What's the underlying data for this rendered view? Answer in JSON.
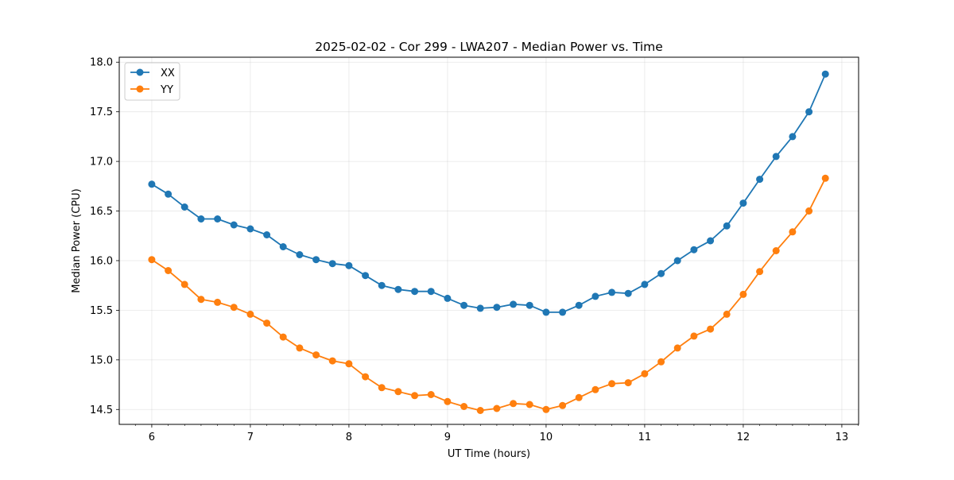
{
  "chart_data": {
    "type": "line",
    "title": "2025-02-02 - Cor 299 - LWA207 - Median Power vs. Time",
    "xlabel": "UT Time (hours)",
    "ylabel": "Median Power (CPU)",
    "xlim": [
      5.67,
      13.17
    ],
    "ylim": [
      14.35,
      18.05
    ],
    "xticks": [
      6,
      7,
      8,
      9,
      10,
      11,
      12,
      13
    ],
    "xtick_labels": [
      "6",
      "7",
      "8",
      "9",
      "10",
      "11",
      "12",
      "13"
    ],
    "yticks": [
      14.5,
      15.0,
      15.5,
      16.0,
      16.5,
      17.0,
      17.5,
      18.0
    ],
    "ytick_labels": [
      "14.5",
      "15.0",
      "15.5",
      "16.0",
      "16.5",
      "17.0",
      "17.5",
      "18.0"
    ],
    "grid": true,
    "legend_position": "top-left",
    "x": [
      6.0,
      6.1667,
      6.3333,
      6.5,
      6.6667,
      6.8333,
      7.0,
      7.1667,
      7.3333,
      7.5,
      7.6667,
      7.8333,
      8.0,
      8.1667,
      8.3333,
      8.5,
      8.6667,
      8.8333,
      9.0,
      9.1667,
      9.3333,
      9.5,
      9.6667,
      9.8333,
      10.0,
      10.1667,
      10.3333,
      10.5,
      10.6667,
      10.8333,
      11.0,
      11.1667,
      11.3333,
      11.5,
      11.6667,
      11.8333,
      12.0,
      12.1667,
      12.3333,
      12.5,
      12.6667,
      12.8333
    ],
    "series": [
      {
        "name": "XX",
        "color": "#1f77b4",
        "values": [
          16.77,
          16.67,
          16.54,
          16.42,
          16.42,
          16.36,
          16.32,
          16.26,
          16.14,
          16.06,
          16.01,
          15.97,
          15.95,
          15.85,
          15.75,
          15.71,
          15.69,
          15.69,
          15.62,
          15.55,
          15.52,
          15.53,
          15.56,
          15.55,
          15.48,
          15.48,
          15.55,
          15.64,
          15.68,
          15.67,
          15.76,
          15.87,
          16.0,
          16.11,
          16.2,
          16.35,
          16.58,
          16.82,
          17.05,
          17.25,
          17.5,
          17.88
        ]
      },
      {
        "name": "YY",
        "color": "#ff7f0e",
        "values": [
          16.01,
          15.9,
          15.76,
          15.61,
          15.58,
          15.53,
          15.46,
          15.37,
          15.23,
          15.12,
          15.05,
          14.99,
          14.96,
          14.83,
          14.72,
          14.68,
          14.64,
          14.65,
          14.58,
          14.53,
          14.49,
          14.51,
          14.56,
          14.55,
          14.5,
          14.54,
          14.62,
          14.7,
          14.76,
          14.77,
          14.86,
          14.98,
          15.12,
          15.24,
          15.31,
          15.46,
          15.66,
          15.89,
          16.1,
          16.29,
          16.5,
          16.83
        ]
      }
    ]
  }
}
